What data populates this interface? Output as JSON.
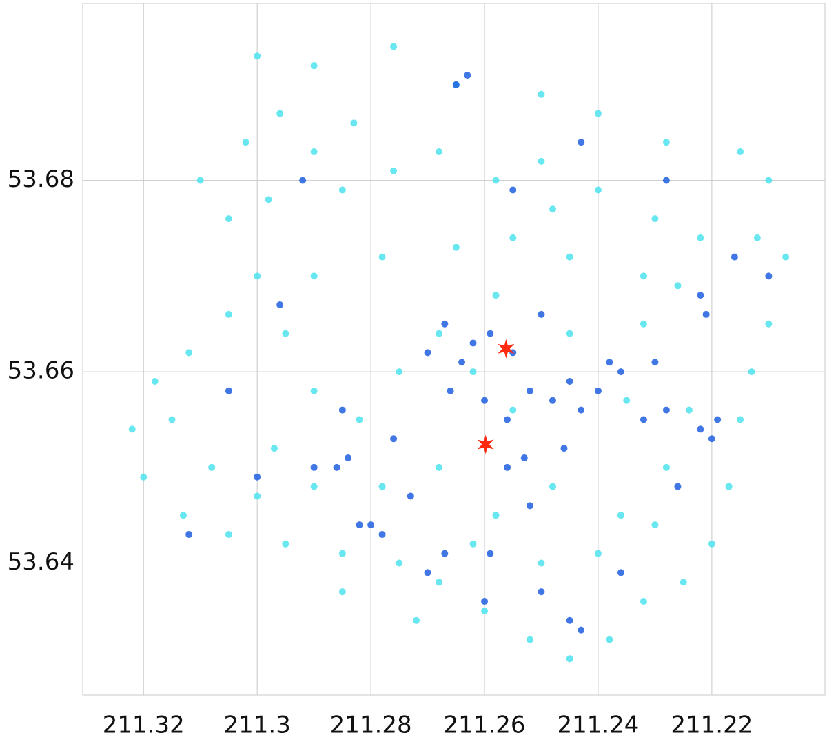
{
  "chart_data": {
    "type": "scatter",
    "xlim": [
      211.3307,
      211.2001
    ],
    "ylim": [
      53.6262,
      53.6985
    ],
    "xticks": [
      211.32,
      211.3,
      211.28,
      211.26,
      211.24,
      211.22
    ],
    "yticks": [
      53.64,
      53.66,
      53.68
    ],
    "grid": true,
    "series": [
      {
        "color": "#4de3ee",
        "marker": "circle",
        "x": [
          211.3,
          211.29,
          211.276,
          211.265,
          211.25,
          211.24,
          211.228,
          211.215,
          211.21,
          211.212,
          211.207,
          211.21,
          211.213,
          211.215,
          211.217,
          211.22,
          211.225,
          211.232,
          211.238,
          211.245,
          211.252,
          211.26,
          211.268,
          211.275,
          211.285,
          211.295,
          211.305,
          211.313,
          211.32,
          211.322,
          211.318,
          211.312,
          211.305,
          211.3,
          211.305,
          211.31,
          211.302,
          211.296,
          211.29,
          211.285,
          211.276,
          211.268,
          211.258,
          211.25,
          211.24,
          211.23,
          211.222,
          211.226,
          211.232,
          211.245,
          211.255,
          211.265,
          211.278,
          211.29,
          211.295,
          211.29,
          211.297,
          211.3,
          211.29,
          211.282,
          211.275,
          211.268,
          211.258,
          211.245,
          211.235,
          211.228,
          211.236,
          211.248,
          211.258,
          211.268,
          211.278,
          211.285,
          211.272,
          211.262,
          211.25,
          211.24,
          211.23,
          211.224,
          211.232,
          211.248,
          211.283,
          211.298,
          211.315,
          211.308,
          211.255,
          211.262
        ],
        "values": [
          53.693,
          53.692,
          53.694,
          53.69,
          53.689,
          53.687,
          53.684,
          53.683,
          53.68,
          53.674,
          53.672,
          53.665,
          53.66,
          53.655,
          53.648,
          53.642,
          53.638,
          53.636,
          53.632,
          53.63,
          53.632,
          53.635,
          53.638,
          53.64,
          53.641,
          53.642,
          53.643,
          53.645,
          53.649,
          53.654,
          53.659,
          53.662,
          53.666,
          53.67,
          53.676,
          53.68,
          53.684,
          53.687,
          53.683,
          53.679,
          53.681,
          53.683,
          53.68,
          53.682,
          53.679,
          53.676,
          53.674,
          53.669,
          53.665,
          53.672,
          53.674,
          53.673,
          53.672,
          53.67,
          53.664,
          53.658,
          53.652,
          53.647,
          53.648,
          53.655,
          53.66,
          53.664,
          53.668,
          53.664,
          53.657,
          53.65,
          53.645,
          53.648,
          53.645,
          53.65,
          53.648,
          53.637,
          53.634,
          53.642,
          53.64,
          53.641,
          53.644,
          53.656,
          53.67,
          53.677,
          53.686,
          53.678,
          53.655,
          53.65,
          53.656,
          53.66
        ]
      },
      {
        "color": "#1f5fe0",
        "marker": "circle",
        "x": [
          211.262,
          211.264,
          211.259,
          211.255,
          211.266,
          211.26,
          211.256,
          211.252,
          211.248,
          211.245,
          211.243,
          211.24,
          211.238,
          211.236,
          211.232,
          211.228,
          211.222,
          211.22,
          211.219,
          211.222,
          211.221,
          211.28,
          211.282,
          211.278,
          211.284,
          211.286,
          211.245,
          211.243,
          211.25,
          211.26,
          211.267,
          211.27,
          211.259,
          211.252,
          211.256,
          211.253,
          211.273,
          211.276,
          211.285,
          211.29,
          211.3,
          211.305,
          211.296,
          211.265,
          211.263,
          211.255,
          211.243,
          211.228,
          211.216,
          211.21,
          211.226,
          211.236,
          211.267,
          211.27,
          211.25,
          211.246,
          211.23,
          211.292,
          211.312
        ],
        "values": [
          53.663,
          53.661,
          53.664,
          53.662,
          53.658,
          53.657,
          53.655,
          53.658,
          53.657,
          53.659,
          53.656,
          53.658,
          53.661,
          53.66,
          53.655,
          53.656,
          53.654,
          53.653,
          53.655,
          53.668,
          53.666,
          53.644,
          53.644,
          53.643,
          53.651,
          53.65,
          53.634,
          53.633,
          53.637,
          53.636,
          53.641,
          53.639,
          53.641,
          53.646,
          53.65,
          53.651,
          53.647,
          53.653,
          53.656,
          53.65,
          53.649,
          53.658,
          53.667,
          53.69,
          53.691,
          53.679,
          53.684,
          53.68,
          53.672,
          53.67,
          53.648,
          53.639,
          53.665,
          53.662,
          53.666,
          53.652,
          53.661,
          53.68,
          53.643
        ]
      },
      {
        "color": "#ff2a10",
        "marker": "star",
        "x": [
          211.2562,
          211.2598
        ],
        "values": [
          53.6624,
          53.6524
        ]
      }
    ]
  }
}
